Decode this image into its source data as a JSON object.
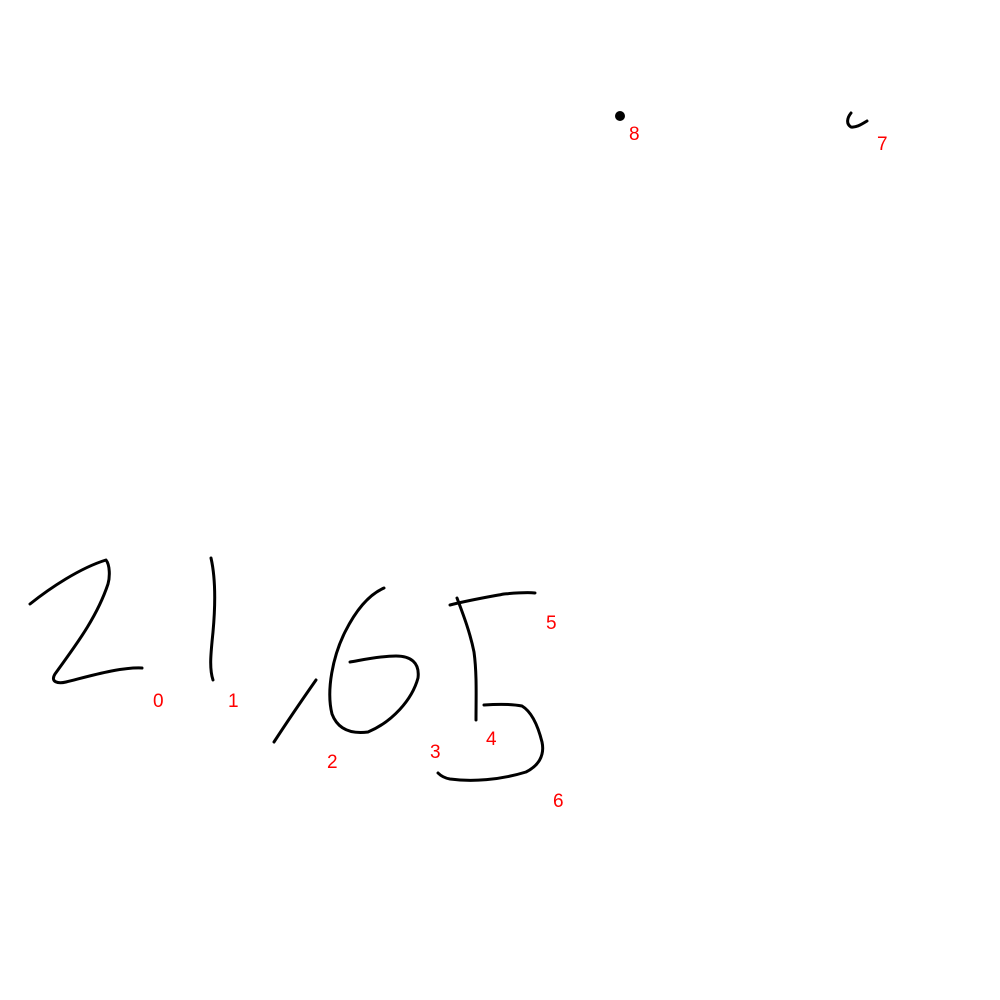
{
  "colors": {
    "background": "#ffffff",
    "ink": "#000000",
    "label": "#ff0000"
  },
  "strokes": [
    {
      "id": 0,
      "label": "0",
      "depicts": "digit 2"
    },
    {
      "id": 1,
      "label": "1",
      "depicts": "digit 1"
    },
    {
      "id": 2,
      "label": "2",
      "depicts": "comma"
    },
    {
      "id": 3,
      "label": "3",
      "depicts": "digit 6"
    },
    {
      "id": 4,
      "label": "4",
      "depicts": "digit 5 vertical"
    },
    {
      "id": 5,
      "label": "5",
      "depicts": "digit 5 top bar"
    },
    {
      "id": 6,
      "label": "6",
      "depicts": "digit 5 bowl"
    },
    {
      "id": 7,
      "label": "7",
      "depicts": "small hook mark"
    },
    {
      "id": 8,
      "label": "8",
      "depicts": "dot"
    }
  ]
}
